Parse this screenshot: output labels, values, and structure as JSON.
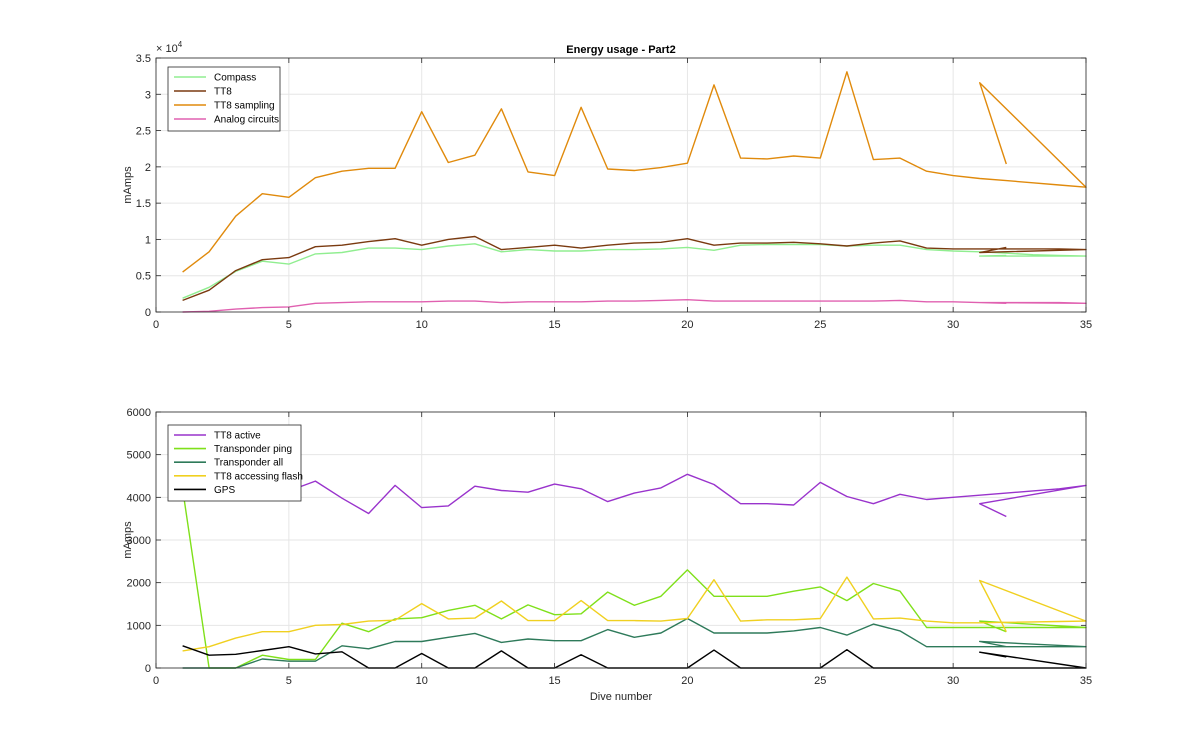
{
  "chart_data": [
    {
      "type": "line",
      "title": "Energy usage - Part2",
      "xlabel": "",
      "ylabel": "mAmps",
      "y_exponent_label": "× 10",
      "y_exponent": "4",
      "xlim": [
        0,
        35
      ],
      "ylim": [
        0,
        35000
      ],
      "x_ticks": [
        0,
        5,
        10,
        15,
        20,
        25,
        30,
        35
      ],
      "x_tick_labels": [
        "0",
        "5",
        "10",
        "15",
        "20",
        "25",
        "30",
        "35"
      ],
      "y_ticks": [
        0,
        5000,
        10000,
        15000,
        20000,
        25000,
        30000,
        35000
      ],
      "y_tick_labels": [
        "0",
        "0.5",
        "1",
        "1.5",
        "2",
        "2.5",
        "3",
        "3.5"
      ],
      "grid": true,
      "legend_position": "top-left",
      "series": [
        {
          "name": "Compass",
          "color": "#90ee90",
          "x": [
            1,
            2,
            3,
            4,
            5,
            6,
            7,
            8,
            9,
            10,
            11,
            12,
            13,
            14,
            15,
            16,
            17,
            18,
            19,
            20,
            21,
            22,
            23,
            24,
            25,
            26,
            27,
            28,
            29,
            30,
            31,
            32,
            33,
            34,
            35,
            31,
            32
          ],
          "y": [
            1900,
            3400,
            5600,
            7000,
            6600,
            8000,
            8200,
            8800,
            8800,
            8600,
            9100,
            9400,
            8300,
            8600,
            8400,
            8400,
            8600,
            8600,
            8700,
            8900,
            8500,
            9200,
            9300,
            9300,
            9300,
            9100,
            9200,
            9200,
            8600,
            8400,
            8300,
            8100,
            7900,
            7800,
            7700,
            7700,
            7800
          ]
        },
        {
          "name": "TT8",
          "color": "#7a3a10",
          "x": [
            1,
            2,
            3,
            4,
            5,
            6,
            7,
            8,
            9,
            10,
            11,
            12,
            13,
            14,
            15,
            16,
            17,
            18,
            19,
            20,
            21,
            22,
            23,
            24,
            25,
            26,
            27,
            28,
            29,
            30,
            31,
            32,
            33,
            34,
            35,
            31,
            32
          ],
          "y": [
            1600,
            3000,
            5700,
            7200,
            7500,
            9000,
            9200,
            9700,
            10100,
            9200,
            10000,
            10400,
            8600,
            8900,
            9200,
            8800,
            9200,
            9500,
            9600,
            10100,
            9200,
            9500,
            9500,
            9600,
            9400,
            9100,
            9500,
            9800,
            8800,
            8700,
            8700,
            8700,
            8700,
            8700,
            8600,
            8200,
            8900
          ]
        },
        {
          "name": "TT8 sampling",
          "color": "#e08a0c",
          "x": [
            1,
            2,
            3,
            4,
            5,
            6,
            7,
            8,
            9,
            10,
            11,
            12,
            13,
            14,
            15,
            16,
            17,
            18,
            19,
            20,
            21,
            22,
            23,
            24,
            25,
            26,
            27,
            28,
            29,
            30,
            31,
            32,
            33,
            34,
            35,
            31,
            32
          ],
          "y": [
            5500,
            8300,
            13200,
            16300,
            15800,
            18500,
            19400,
            19800,
            19800,
            27600,
            20600,
            21600,
            28000,
            19300,
            18800,
            28200,
            19700,
            19500,
            19900,
            20500,
            31300,
            21200,
            21100,
            21500,
            21200,
            33100,
            21000,
            21200,
            19400,
            18800,
            18400,
            18100,
            17800,
            17500,
            17200,
            31600,
            20400
          ]
        },
        {
          "name": "Analog circuits",
          "color": "#e060b0",
          "x": [
            1,
            2,
            3,
            4,
            5,
            6,
            7,
            8,
            9,
            10,
            11,
            12,
            13,
            14,
            15,
            16,
            17,
            18,
            19,
            20,
            21,
            22,
            23,
            24,
            25,
            26,
            27,
            28,
            29,
            30,
            31,
            32,
            33,
            34,
            35,
            31,
            32
          ],
          "y": [
            0,
            100,
            400,
            600,
            700,
            1200,
            1300,
            1400,
            1400,
            1400,
            1500,
            1500,
            1300,
            1400,
            1400,
            1400,
            1500,
            1500,
            1600,
            1700,
            1500,
            1500,
            1500,
            1500,
            1500,
            1500,
            1500,
            1600,
            1400,
            1400,
            1300,
            1300,
            1300,
            1300,
            1200,
            1300,
            1200
          ]
        }
      ]
    },
    {
      "type": "line",
      "title": "",
      "xlabel": "Dive number",
      "ylabel": "mAmps",
      "xlim": [
        0,
        35
      ],
      "ylim": [
        0,
        6000
      ],
      "x_ticks": [
        0,
        5,
        10,
        15,
        20,
        25,
        30,
        35
      ],
      "x_tick_labels": [
        "0",
        "5",
        "10",
        "15",
        "20",
        "25",
        "30",
        "35"
      ],
      "y_ticks": [
        0,
        1000,
        2000,
        3000,
        4000,
        5000,
        6000
      ],
      "y_tick_labels": [
        "0",
        "1000",
        "2000",
        "3000",
        "4000",
        "5000",
        "6000"
      ],
      "grid": true,
      "legend_position": "top-left",
      "series": [
        {
          "name": "TT8 active",
          "color": "#9933cc",
          "x": [
            1,
            2,
            3,
            4,
            5,
            6,
            7,
            8,
            9,
            10,
            11,
            12,
            13,
            14,
            15,
            16,
            17,
            18,
            19,
            20,
            21,
            22,
            23,
            24,
            25,
            26,
            27,
            28,
            29,
            30,
            31,
            32,
            33,
            34,
            35,
            31,
            32
          ],
          "y": [
            4300,
            4200,
            4150,
            4000,
            4150,
            4380,
            3980,
            3620,
            4280,
            3760,
            3800,
            4260,
            4160,
            4120,
            4310,
            4200,
            3900,
            4100,
            4220,
            4540,
            4300,
            3850,
            3850,
            3820,
            4350,
            4020,
            3850,
            4070,
            3950,
            4000,
            4050,
            4100,
            4150,
            4200,
            4280,
            3850,
            3550
          ]
        },
        {
          "name": "Transponder ping",
          "color": "#7fe01a",
          "x": [
            1,
            2,
            3,
            4,
            5,
            6,
            7,
            8,
            9,
            10,
            11,
            12,
            13,
            14,
            15,
            16,
            17,
            18,
            19,
            20,
            21,
            22,
            23,
            24,
            25,
            26,
            27,
            28,
            29,
            30,
            31,
            32,
            33,
            34,
            35,
            31,
            32
          ],
          "y": [
            4200,
            0,
            0,
            300,
            200,
            200,
            1050,
            850,
            1150,
            1180,
            1350,
            1470,
            1150,
            1480,
            1250,
            1270,
            1780,
            1470,
            1680,
            2300,
            1680,
            1680,
            1680,
            1800,
            1900,
            1580,
            1980,
            1800,
            950,
            950,
            950,
            950,
            950,
            950,
            950,
            1100,
            850
          ]
        },
        {
          "name": "Transponder all",
          "color": "#2e7a5a",
          "x": [
            1,
            2,
            3,
            4,
            5,
            6,
            7,
            8,
            9,
            10,
            11,
            12,
            13,
            14,
            15,
            16,
            17,
            18,
            19,
            20,
            21,
            22,
            23,
            24,
            25,
            26,
            27,
            28,
            29,
            30,
            31,
            32,
            33,
            34,
            35,
            31,
            32
          ],
          "y": [
            0,
            0,
            0,
            210,
            160,
            160,
            520,
            450,
            620,
            620,
            720,
            810,
            600,
            680,
            640,
            640,
            900,
            720,
            820,
            1160,
            820,
            820,
            820,
            870,
            950,
            770,
            1030,
            870,
            500,
            500,
            500,
            500,
            500,
            500,
            500,
            620,
            500
          ]
        },
        {
          "name": "TT8 accessing flash",
          "color": "#f0d020",
          "x": [
            1,
            2,
            3,
            4,
            5,
            6,
            7,
            8,
            9,
            10,
            11,
            12,
            13,
            14,
            15,
            16,
            17,
            18,
            19,
            20,
            21,
            22,
            23,
            24,
            25,
            26,
            27,
            28,
            29,
            30,
            31,
            32,
            33,
            34,
            35,
            31,
            32
          ],
          "y": [
            400,
            500,
            700,
            850,
            850,
            1000,
            1020,
            1100,
            1120,
            1510,
            1150,
            1170,
            1570,
            1110,
            1110,
            1580,
            1110,
            1110,
            1100,
            1160,
            2070,
            1100,
            1130,
            1130,
            1160,
            2130,
            1150,
            1170,
            1100,
            1060,
            1060,
            1070,
            1080,
            1090,
            1100,
            2050,
            850
          ]
        },
        {
          "name": "GPS",
          "color": "#000000",
          "x": [
            1,
            2,
            3,
            4,
            5,
            6,
            7,
            8,
            9,
            10,
            11,
            12,
            13,
            14,
            15,
            16,
            17,
            18,
            19,
            20,
            21,
            22,
            23,
            24,
            25,
            26,
            27,
            28,
            29,
            30,
            31,
            32,
            33,
            34,
            35,
            31,
            32
          ],
          "y": [
            520,
            300,
            320,
            410,
            500,
            330,
            380,
            0,
            0,
            340,
            0,
            0,
            400,
            0,
            0,
            310,
            0,
            0,
            0,
            0,
            420,
            0,
            0,
            0,
            0,
            430,
            0,
            0,
            0,
            0,
            0,
            0,
            0,
            0,
            0,
            370,
            260
          ]
        }
      ]
    }
  ]
}
